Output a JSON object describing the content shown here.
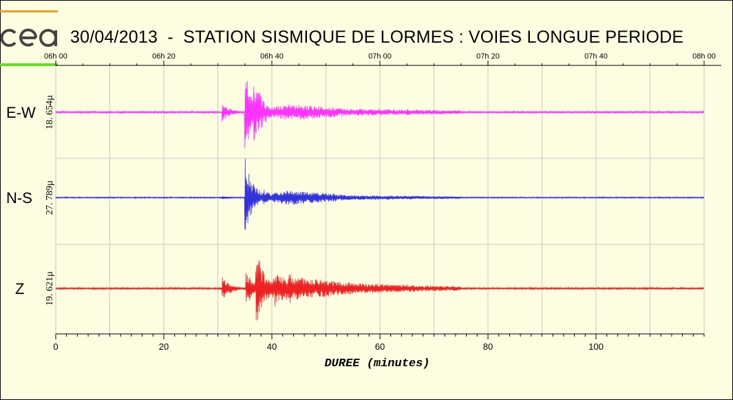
{
  "title": "30/04/2013  -  STATION SISMIQUE DE LORMES : VOIES LONGUE PERIODE",
  "logo_text": "cea",
  "colors": {
    "background": "#fdfde1",
    "ew": "#ff33ff",
    "ns": "#3333dd",
    "z": "#ee2222",
    "grid": "#c8c8c8",
    "logo_orange": "#f0a020",
    "logo_green": "#66dd22"
  },
  "chart_data": {
    "type": "line",
    "xlabel": "DUREE (minutes)",
    "xlim": [
      0,
      120
    ],
    "x_ticks": [
      0,
      20,
      40,
      60,
      80,
      100
    ],
    "x_minor_step": 2,
    "time_ticks": [
      "06h 00",
      "06h 20",
      "06h 40",
      "07h 00",
      "07h 20",
      "07h 40",
      "08h 00"
    ],
    "grid": "vertical every 10 minutes, horizontal between traces",
    "series": [
      {
        "name": "E-W",
        "scale_label": "18. 654µ",
        "color": "#ff33ff",
        "events": [
          {
            "t": 30.8,
            "amp": 0.22
          },
          {
            "t": 35.0,
            "amp": 0.95
          },
          {
            "t": 36.6,
            "amp": 0.75
          },
          {
            "t": 37.5,
            "amp": 0.55
          }
        ],
        "coda": [
          {
            "t": 43,
            "amp": 0.18
          },
          {
            "t": 55,
            "amp": 0.08
          },
          {
            "t": 75,
            "amp": 0.04
          }
        ],
        "noise": 0.02
      },
      {
        "name": "N-S",
        "scale_label": "27. 789µ",
        "color": "#3333dd",
        "events": [
          {
            "t": 30.8,
            "amp": 0.05
          },
          {
            "t": 35.0,
            "amp": 1.0
          },
          {
            "t": 36.6,
            "amp": 0.3
          },
          {
            "t": 38.5,
            "amp": 0.22
          },
          {
            "t": 44,
            "amp": 0.2
          }
        ],
        "coda": [
          {
            "t": 43,
            "amp": 0.18
          },
          {
            "t": 55,
            "amp": 0.06
          },
          {
            "t": 75,
            "amp": 0.03
          }
        ],
        "noise": 0.015
      },
      {
        "name": "Z",
        "scale_label": "19. 621µ",
        "color": "#ee2222",
        "events": [
          {
            "t": 30.8,
            "amp": 0.3
          },
          {
            "t": 35.2,
            "amp": 0.45
          },
          {
            "t": 37.0,
            "amp": 1.0
          },
          {
            "t": 40.5,
            "amp": 0.5
          },
          {
            "t": 43,
            "amp": 0.45
          }
        ],
        "coda": [
          {
            "t": 42,
            "amp": 0.3
          },
          {
            "t": 56,
            "amp": 0.12
          },
          {
            "t": 75,
            "amp": 0.05
          }
        ],
        "noise": 0.02
      }
    ]
  }
}
